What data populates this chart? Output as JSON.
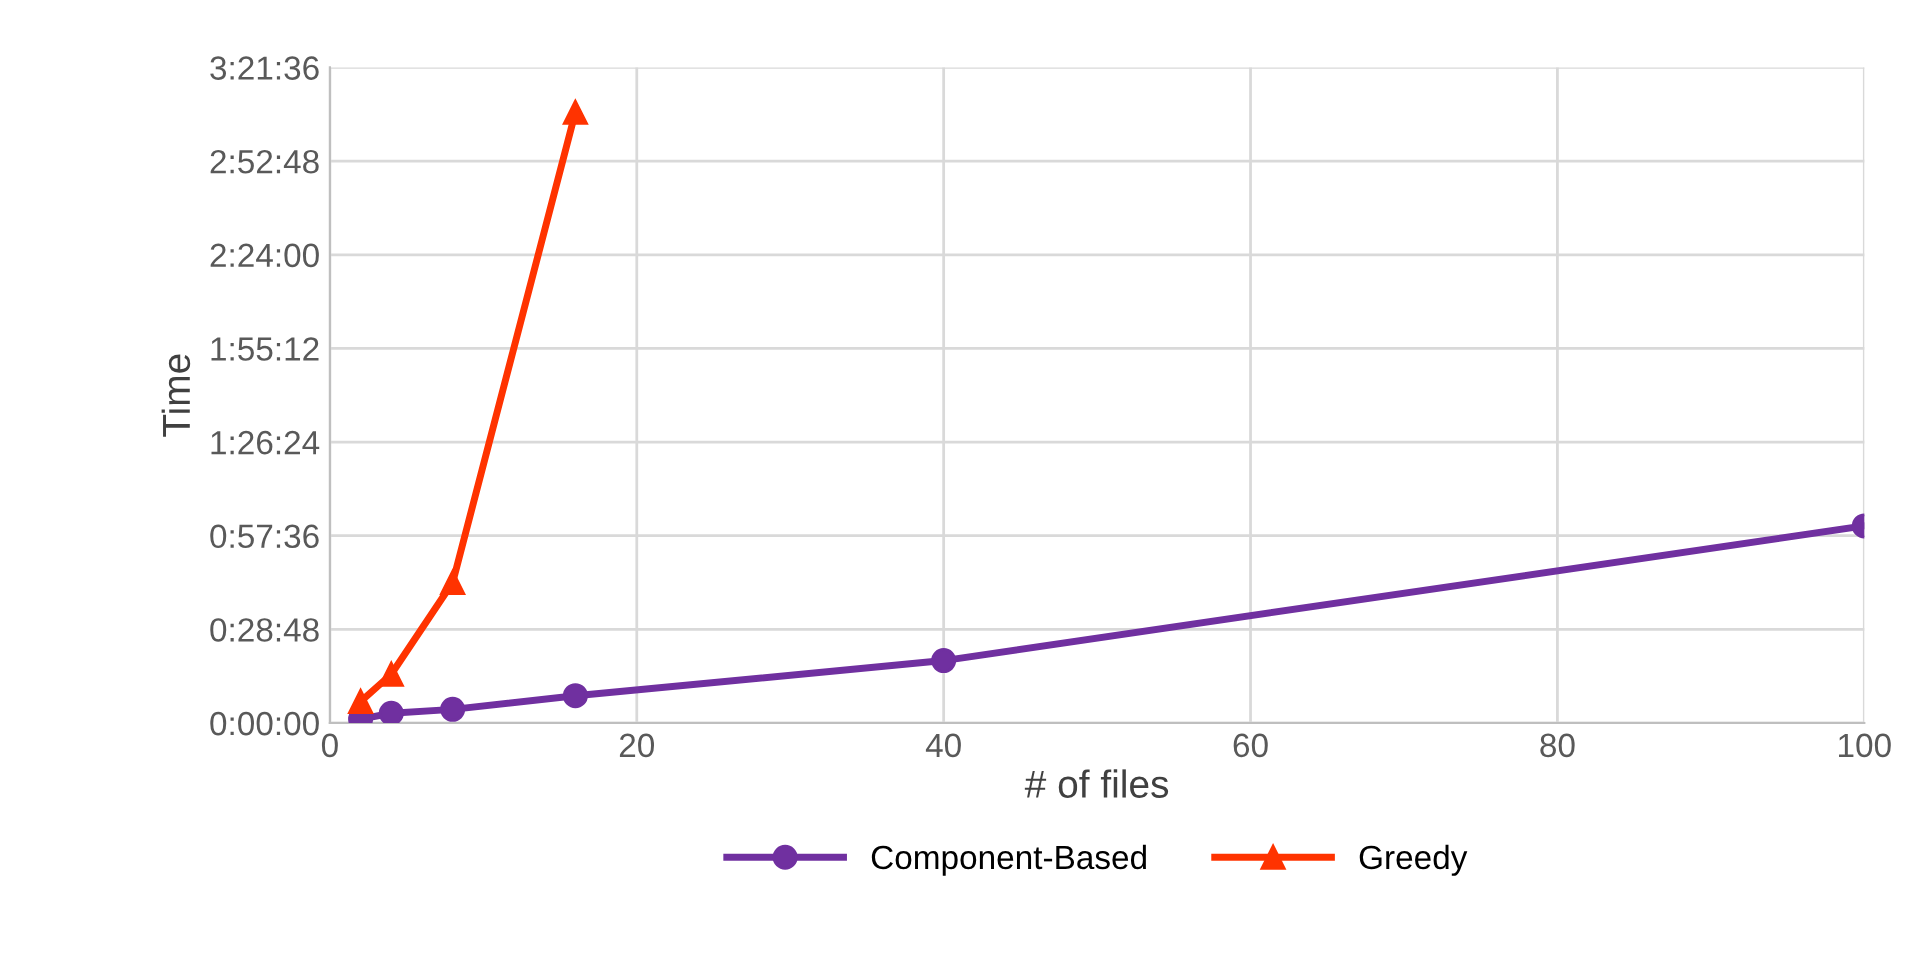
{
  "chart_data": {
    "type": "line",
    "xlabel": "# of files",
    "ylabel": "Time",
    "xlim": [
      0,
      100
    ],
    "xticks": [
      0,
      20,
      40,
      60,
      80,
      100
    ],
    "ylim": [
      0,
      3.36
    ],
    "yticks": [
      {
        "value": 0,
        "label": "0:00:00"
      },
      {
        "value": 0.48,
        "label": "0:28:48"
      },
      {
        "value": 0.96,
        "label": "0:57:36"
      },
      {
        "value": 1.44,
        "label": "1:26:24"
      },
      {
        "value": 1.92,
        "label": "1:55:12"
      },
      {
        "value": 2.4,
        "label": "2:24:00"
      },
      {
        "value": 2.88,
        "label": "2:52:48"
      },
      {
        "value": 3.36,
        "label": "3:21:36"
      }
    ],
    "grid": true,
    "legend": "bottom",
    "series": [
      {
        "name": "Component-Based",
        "color": "#7030a0",
        "marker": "circle",
        "x": [
          2,
          4,
          8,
          16,
          40,
          100
        ],
        "values": [
          0.02,
          0.05,
          0.07,
          0.14,
          0.32,
          1.01
        ]
      },
      {
        "name": "Greedy",
        "color": "#ff3300",
        "marker": "triangle",
        "x": [
          2,
          4,
          8,
          16
        ],
        "values": [
          0.11,
          0.25,
          0.72,
          3.13
        ]
      }
    ]
  }
}
